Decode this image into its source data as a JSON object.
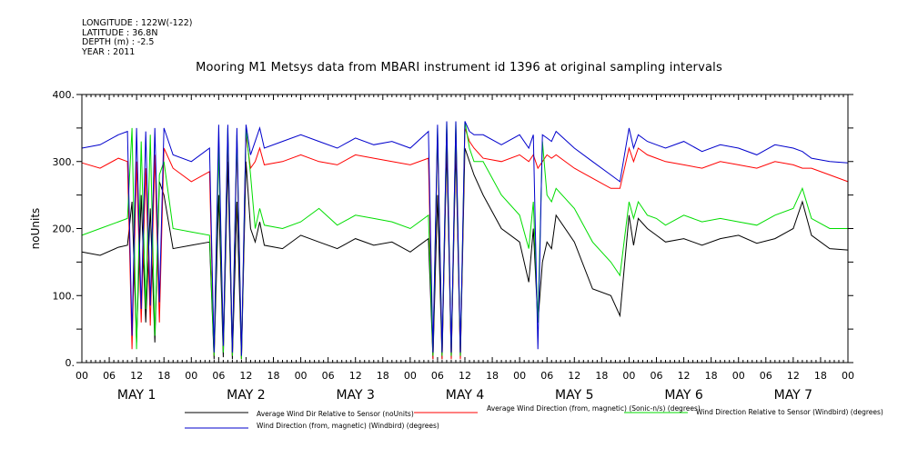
{
  "header": {
    "longitude": "LONGITUDE : 122W(-122)",
    "latitude": "LATITUDE : 36.8N",
    "depth": "DEPTH (m) : -2.5",
    "year": "YEAR : 2011"
  },
  "chart_data": {
    "type": "line",
    "title": "Mooring M1 Metsys data from MBARI instrument id 1396 at original sampling intervals",
    "ylabel": "noUnits",
    "xlabel": "",
    "ylim": [
      0,
      400
    ],
    "yticks": [
      0,
      100,
      200,
      300,
      400
    ],
    "ytick_labels": [
      "0.",
      "100.",
      "200.",
      "300.",
      "400."
    ],
    "xlim": [
      0,
      168
    ],
    "x_unit": "hours since 2011-05-01 00:00",
    "hour_tick_labels": [
      "00",
      "06",
      "12",
      "18",
      "00",
      "06",
      "12",
      "18",
      "00",
      "06",
      "12",
      "18",
      "00",
      "06",
      "12",
      "18",
      "00",
      "06",
      "12",
      "18",
      "00",
      "06",
      "12",
      "18",
      "00",
      "06",
      "12",
      "18",
      "00"
    ],
    "day_labels": [
      "MAY 1",
      "MAY 2",
      "MAY 3",
      "MAY 4",
      "MAY 5",
      "MAY 6",
      "MAY 7"
    ],
    "grid": false,
    "legend_position": "bottom",
    "series": [
      {
        "name": "Average Wind Dir Relative to Sensor (noUnits)",
        "color": "#000000",
        "x": [
          0,
          4,
          8,
          10,
          11,
          12,
          13,
          14,
          15,
          16,
          17,
          18,
          20,
          24,
          28,
          29,
          30,
          31,
          32,
          33,
          34,
          35,
          36,
          37,
          38,
          39,
          40,
          44,
          48,
          52,
          56,
          60,
          64,
          68,
          72,
          76,
          77,
          78,
          79,
          80,
          81,
          82,
          83,
          84,
          85,
          86,
          88,
          92,
          96,
          98,
          99,
          100,
          101,
          102,
          103,
          104,
          108,
          112,
          116,
          118,
          120,
          121,
          122,
          124,
          126,
          128,
          132,
          136,
          140,
          144,
          148,
          152,
          156,
          158,
          160,
          164,
          168
        ],
        "y": [
          165,
          160,
          172,
          175,
          240,
          30,
          250,
          60,
          230,
          30,
          270,
          250,
          170,
          175,
          180,
          5,
          250,
          8,
          300,
          5,
          240,
          5,
          300,
          200,
          180,
          210,
          175,
          170,
          190,
          180,
          170,
          185,
          175,
          180,
          165,
          185,
          5,
          250,
          5,
          320,
          5,
          320,
          5,
          320,
          300,
          280,
          250,
          200,
          180,
          120,
          200,
          60,
          150,
          180,
          170,
          220,
          180,
          110,
          100,
          70,
          220,
          175,
          215,
          200,
          190,
          180,
          185,
          175,
          185,
          190,
          178,
          185,
          200,
          240,
          190,
          170,
          168
        ]
      },
      {
        "name": "Average Wind Direction (from, magnetic) (Sonic-n/s) (degrees)",
        "color": "#ff0000",
        "x": [
          0,
          4,
          8,
          10,
          11,
          12,
          13,
          14,
          15,
          16,
          17,
          18,
          20,
          24,
          28,
          29,
          30,
          31,
          32,
          33,
          34,
          35,
          36,
          37,
          38,
          39,
          40,
          44,
          48,
          52,
          56,
          60,
          64,
          68,
          72,
          76,
          77,
          78,
          79,
          80,
          81,
          82,
          83,
          84,
          85,
          86,
          88,
          92,
          96,
          98,
          99,
          100,
          101,
          102,
          103,
          104,
          108,
          112,
          116,
          118,
          120,
          121,
          122,
          124,
          126,
          128,
          132,
          136,
          140,
          144,
          148,
          152,
          156,
          158,
          160,
          164,
          168
        ],
        "y": [
          298,
          290,
          305,
          300,
          20,
          300,
          60,
          290,
          55,
          310,
          60,
          320,
          290,
          270,
          285,
          10,
          330,
          20,
          340,
          10,
          330,
          5,
          340,
          290,
          300,
          320,
          295,
          300,
          310,
          300,
          295,
          310,
          305,
          300,
          295,
          305,
          5,
          340,
          5,
          350,
          5,
          350,
          5,
          350,
          330,
          320,
          305,
          300,
          310,
          300,
          310,
          290,
          300,
          310,
          305,
          310,
          290,
          275,
          260,
          260,
          320,
          300,
          320,
          310,
          305,
          300,
          295,
          290,
          300,
          295,
          290,
          300,
          295,
          290,
          290,
          280,
          270
        ]
      },
      {
        "name": "Wind Direction Relative to Sensor (Windbird) (degrees)",
        "color": "#00dd00",
        "x": [
          0,
          4,
          8,
          10,
          11,
          12,
          13,
          14,
          15,
          16,
          17,
          18,
          20,
          24,
          28,
          29,
          30,
          31,
          32,
          33,
          34,
          35,
          36,
          37,
          38,
          39,
          40,
          44,
          48,
          52,
          56,
          60,
          64,
          68,
          72,
          76,
          77,
          78,
          79,
          80,
          81,
          82,
          83,
          84,
          85,
          86,
          88,
          92,
          96,
          98,
          99,
          100,
          101,
          102,
          103,
          104,
          108,
          112,
          116,
          118,
          120,
          121,
          122,
          124,
          126,
          128,
          132,
          136,
          140,
          144,
          148,
          152,
          156,
          158,
          160,
          164,
          168
        ],
        "y": [
          190,
          200,
          210,
          215,
          350,
          20,
          330,
          80,
          340,
          40,
          280,
          300,
          200,
          195,
          190,
          10,
          320,
          15,
          350,
          10,
          340,
          5,
          350,
          280,
          200,
          230,
          205,
          200,
          210,
          230,
          205,
          220,
          215,
          210,
          200,
          220,
          10,
          350,
          10,
          360,
          10,
          360,
          10,
          360,
          320,
          300,
          300,
          250,
          220,
          170,
          240,
          60,
          330,
          250,
          240,
          260,
          230,
          180,
          150,
          130,
          240,
          215,
          240,
          220,
          215,
          205,
          220,
          210,
          215,
          210,
          205,
          220,
          230,
          260,
          215,
          200,
          200
        ]
      },
      {
        "name": "Wind Direction (from, magnetic) (Windbird) (degrees)",
        "color": "#0000cc",
        "x": [
          0,
          4,
          8,
          10,
          11,
          12,
          13,
          14,
          15,
          16,
          17,
          18,
          20,
          24,
          28,
          29,
          30,
          31,
          32,
          33,
          34,
          35,
          36,
          37,
          38,
          39,
          40,
          44,
          48,
          52,
          56,
          60,
          64,
          68,
          72,
          76,
          77,
          78,
          79,
          80,
          81,
          82,
          83,
          84,
          85,
          86,
          88,
          92,
          96,
          98,
          99,
          100,
          101,
          102,
          103,
          104,
          108,
          112,
          116,
          118,
          120,
          121,
          122,
          124,
          126,
          128,
          132,
          136,
          140,
          144,
          148,
          152,
          156,
          158,
          160,
          164,
          168
        ],
        "y": [
          320,
          325,
          340,
          345,
          40,
          350,
          80,
          345,
          85,
          350,
          90,
          350,
          310,
          300,
          320,
          15,
          355,
          25,
          355,
          15,
          350,
          10,
          355,
          310,
          330,
          350,
          320,
          330,
          340,
          330,
          320,
          335,
          325,
          330,
          320,
          345,
          15,
          355,
          15,
          360,
          15,
          360,
          15,
          360,
          345,
          340,
          340,
          325,
          340,
          320,
          340,
          20,
          340,
          335,
          330,
          345,
          320,
          300,
          280,
          270,
          350,
          320,
          340,
          330,
          325,
          320,
          330,
          315,
          325,
          320,
          310,
          325,
          320,
          315,
          305,
          300,
          298
        ]
      }
    ]
  }
}
